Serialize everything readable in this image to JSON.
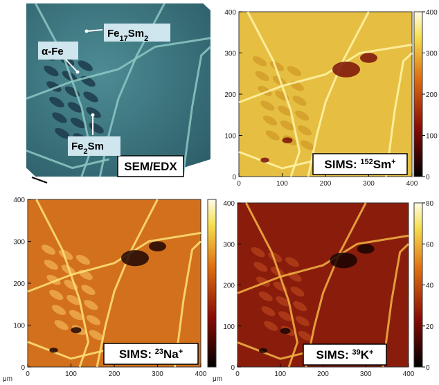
{
  "panels": [
    {
      "kind": "sem",
      "label_parts": [
        {
          "text": "SEM/EDX",
          "style": "normal"
        }
      ],
      "annotations": [
        {
          "parts": [
            {
              "text": "Fe",
              "style": "normal"
            },
            {
              "text": "17",
              "style": "sub"
            },
            {
              "text": "Sm",
              "style": "normal"
            },
            {
              "text": "2",
              "style": "sub"
            }
          ]
        },
        {
          "parts": [
            {
              "text": "α-Fe",
              "style": "normal"
            }
          ]
        },
        {
          "parts": [
            {
              "text": "Fe",
              "style": "normal"
            },
            {
              "text": "2",
              "style": "sub"
            },
            {
              "text": "Sm",
              "style": "normal"
            }
          ]
        }
      ]
    },
    {
      "kind": "sims",
      "palette": "sm",
      "label_parts": [
        {
          "text": "SIMS: ",
          "style": "normal"
        },
        {
          "text": "152",
          "style": "sup"
        },
        {
          "text": "Sm",
          "style": "normal"
        },
        {
          "text": "+",
          "style": "sup"
        }
      ],
      "xticks": [
        0,
        100,
        200,
        300,
        400
      ],
      "yticks": [
        0,
        100,
        200,
        300,
        400
      ],
      "colorbar_ticks": [
        0,
        100,
        200,
        300,
        400
      ]
    },
    {
      "kind": "sims",
      "palette": "na",
      "label_parts": [
        {
          "text": "SIMS: ",
          "style": "normal"
        },
        {
          "text": "23",
          "style": "sup"
        },
        {
          "text": "Na",
          "style": "normal"
        },
        {
          "text": "+",
          "style": "sup"
        }
      ],
      "xticks": [
        0,
        100,
        200,
        300,
        400
      ],
      "yticks": [
        0,
        100,
        200,
        300,
        400
      ],
      "x_unit": "μm"
    },
    {
      "kind": "sims",
      "palette": "k",
      "label_parts": [
        {
          "text": "SIMS: ",
          "style": "normal"
        },
        {
          "text": "39",
          "style": "sup"
        },
        {
          "text": "K",
          "style": "normal"
        },
        {
          "text": "+",
          "style": "sup"
        }
      ],
      "xticks": [
        0,
        100,
        200,
        300,
        400
      ],
      "yticks": [
        0,
        100,
        200,
        300,
        400
      ],
      "colorbar_ticks": [
        0,
        20,
        40,
        60,
        80
      ],
      "x_unit": "μm"
    }
  ]
}
